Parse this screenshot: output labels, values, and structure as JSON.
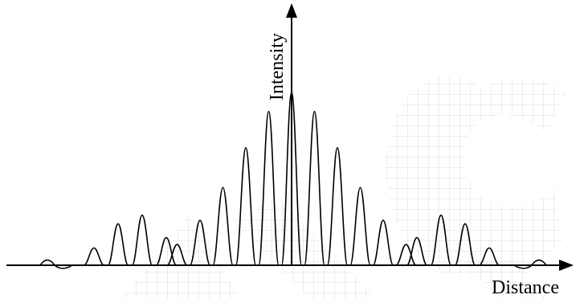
{
  "diagram": {
    "y_axis_label": "Intensity",
    "x_axis_label": "Distance",
    "colors": {
      "line": "#000000",
      "watermark": "#d2d2d2",
      "background": "#ffffff"
    },
    "fringes": {
      "center": [
        0.12,
        0.26,
        0.45,
        0.68,
        0.89,
        1.0,
        0.89,
        0.68,
        0.45,
        0.26,
        0.12
      ],
      "left_group": [
        0.1,
        0.24,
        0.29,
        0.16
      ],
      "right_group": [
        0.16,
        0.29,
        0.24,
        0.1
      ],
      "edge_ripple": 0.04
    }
  }
}
